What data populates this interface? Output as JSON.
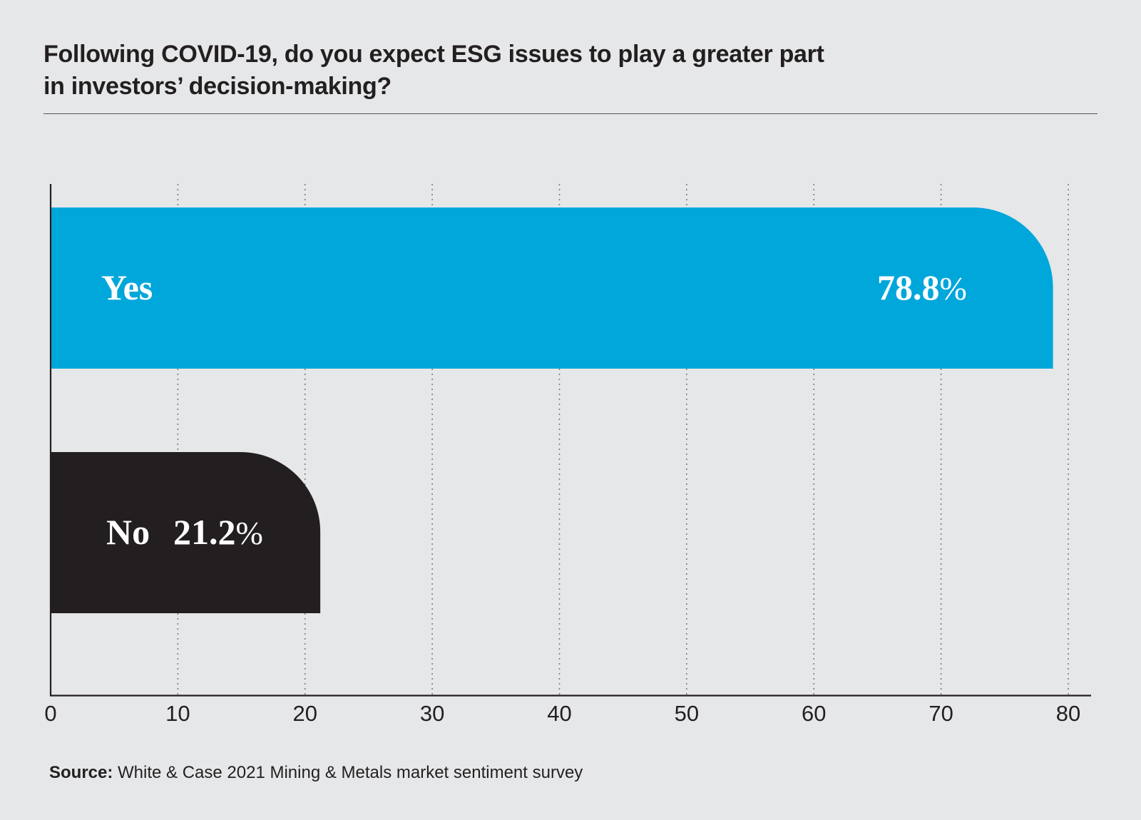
{
  "chart_data": {
    "type": "bar",
    "orientation": "horizontal",
    "title": "Following COVID-19, do you expect ESG issues to play a greater part in investors’ decision-making?",
    "title_lines": [
      "Following COVID-19, do you expect ESG issues to play a greater part",
      "in investors’ decision-making?"
    ],
    "categories": [
      "Yes",
      "No"
    ],
    "values": [
      78.8,
      21.2
    ],
    "value_labels": [
      "78.8%",
      "21.2%"
    ],
    "colors": [
      "#00a7db",
      "#231f20"
    ],
    "xlabel": "",
    "ylabel": "",
    "xlim": [
      0,
      80
    ],
    "xticks": [
      0,
      10,
      20,
      30,
      40,
      50,
      60,
      70,
      80
    ],
    "xtick_labels": [
      "0",
      "10",
      "20",
      "30",
      "40",
      "50",
      "60",
      "70",
      "80"
    ],
    "grid": "vertical dotted",
    "legend": "none"
  },
  "source": {
    "label": "Source:",
    "text": " White & Case 2021 Mining & Metals market sentiment survey"
  },
  "colors": {
    "background": "#e6e7e9",
    "text": "#231f20",
    "yes_bar": "#00a7db",
    "no_bar": "#231f20",
    "grid": "#7d7d80"
  }
}
